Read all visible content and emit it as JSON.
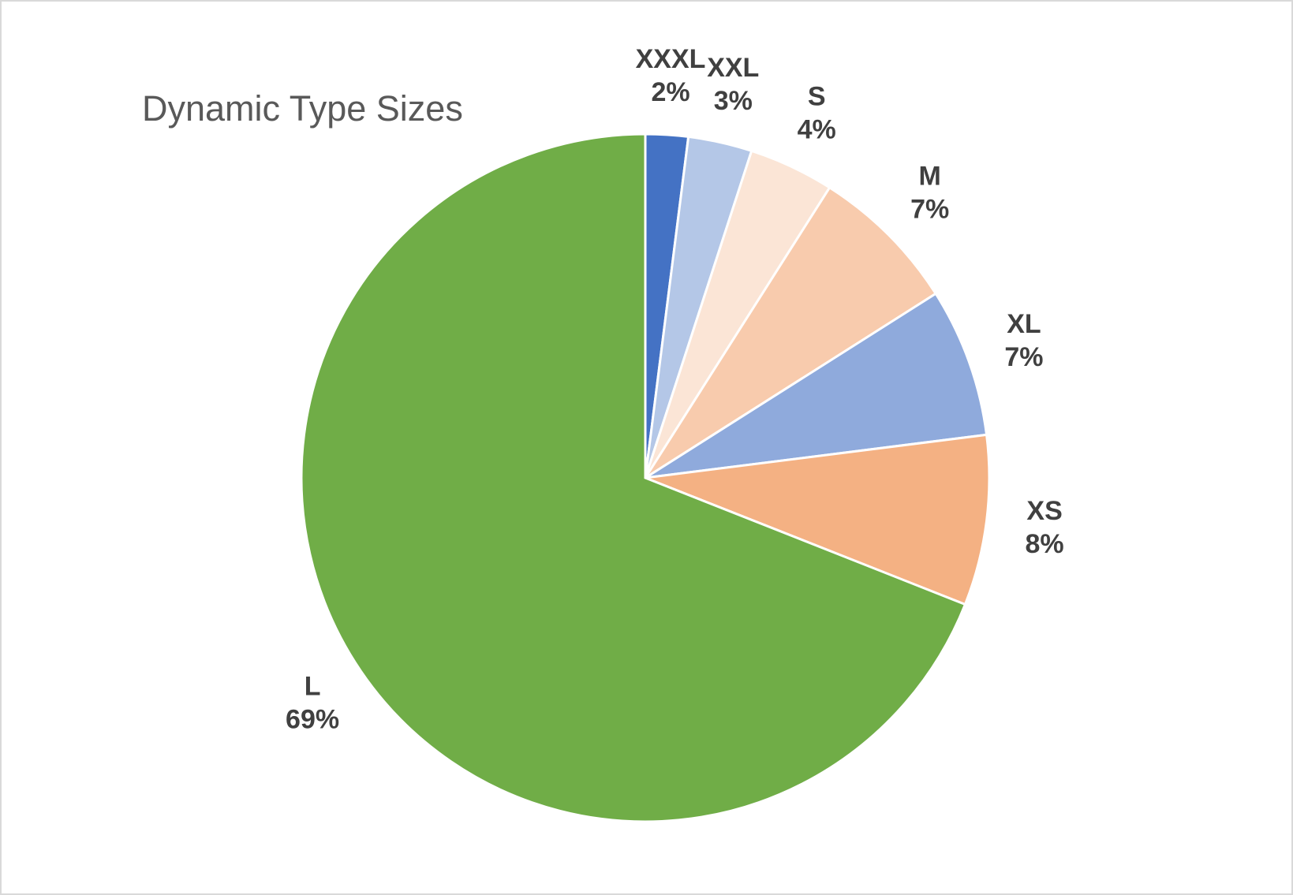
{
  "chart_data": {
    "type": "pie",
    "title": "Dynamic Type Sizes",
    "categories": [
      "XXXL",
      "XXL",
      "S",
      "M",
      "XL",
      "XS",
      "L"
    ],
    "values": [
      2,
      3,
      4,
      7,
      7,
      8,
      69
    ],
    "value_labels": [
      "2%",
      "3%",
      "4%",
      "7%",
      "7%",
      "8%",
      "69%"
    ],
    "colors": [
      "#4472c4",
      "#b4c7e7",
      "#fbe5d6",
      "#f8cbad",
      "#8faadc",
      "#f4b183",
      "#70ad47"
    ]
  }
}
